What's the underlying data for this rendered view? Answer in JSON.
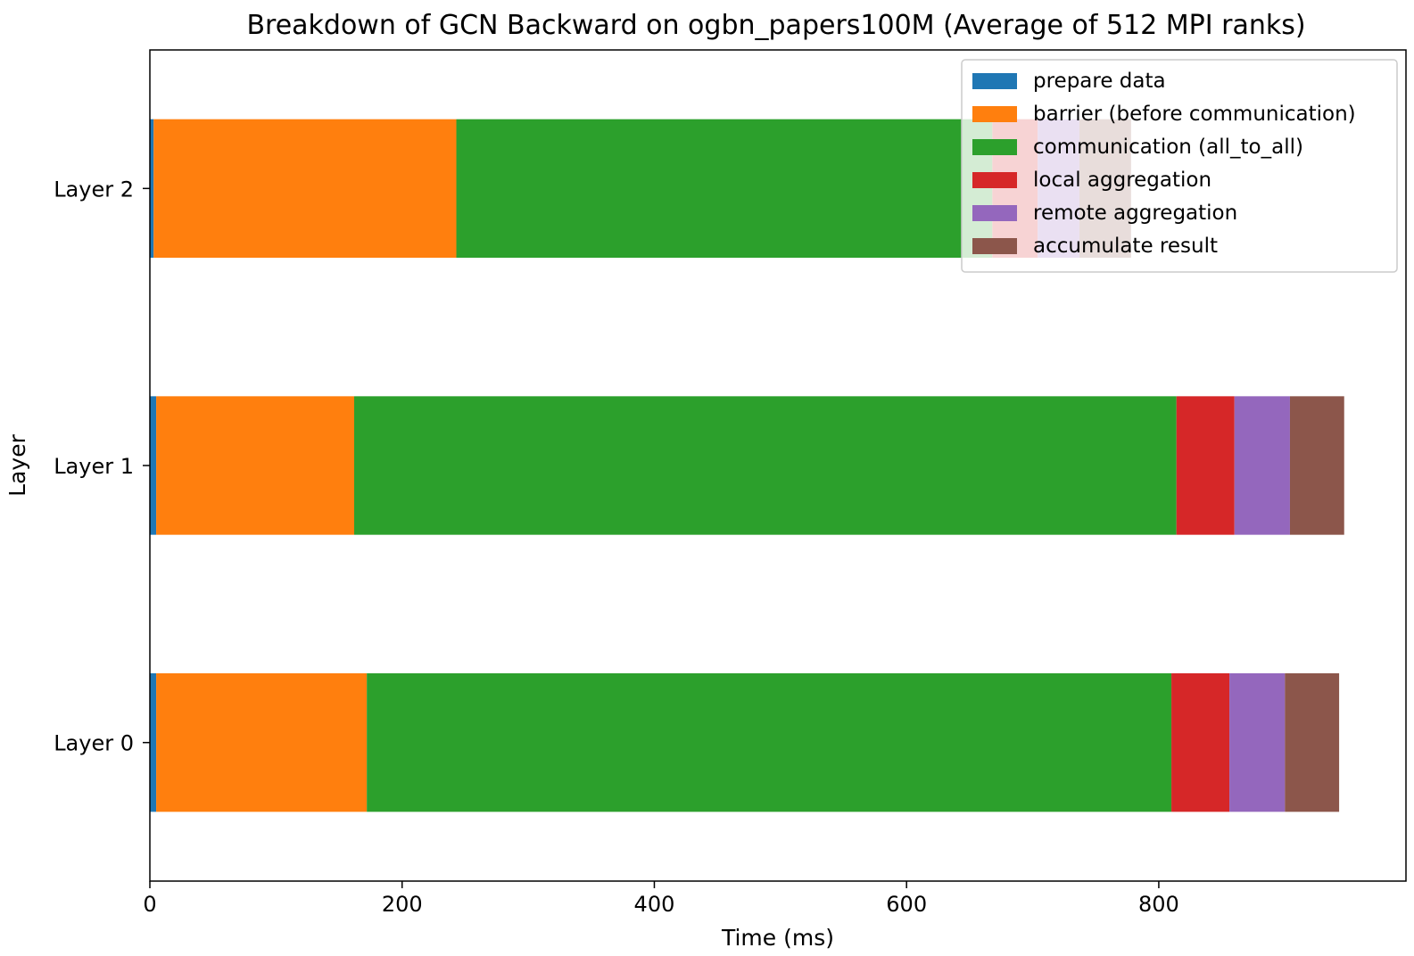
{
  "chart_data": {
    "type": "bar",
    "orientation": "horizontal",
    "stacked": true,
    "title": "Breakdown of GCN Backward on ogbn_papers100M (Average of 512 MPI ranks)",
    "xlabel": "Time (ms)",
    "ylabel": "Layer",
    "xlim": [
      0,
      996
    ],
    "x_ticks": [
      "0",
      "200",
      "400",
      "600",
      "800"
    ],
    "x_tick_values": [
      0,
      200,
      400,
      600,
      800
    ],
    "categories": [
      "Layer 0",
      "Layer 1",
      "Layer 2"
    ],
    "legend_position": "top-right",
    "grid": false,
    "series": [
      {
        "name": "prepare data",
        "color": "#1f77b4",
        "values": [
          5,
          5,
          3
        ]
      },
      {
        "name": "barrier (before communication)",
        "color": "#ff7f0e",
        "values": [
          167,
          157,
          240
        ]
      },
      {
        "name": "communication (all_to_all)",
        "color": "#2ca02c",
        "values": [
          638,
          652,
          425
        ]
      },
      {
        "name": "local aggregation",
        "color": "#d62728",
        "values": [
          46,
          46,
          36
        ]
      },
      {
        "name": "remote aggregation",
        "color": "#9467bd",
        "values": [
          44,
          44,
          33
        ]
      },
      {
        "name": "accumulate result",
        "color": "#8c564b",
        "values": [
          43,
          43,
          41
        ]
      }
    ]
  }
}
